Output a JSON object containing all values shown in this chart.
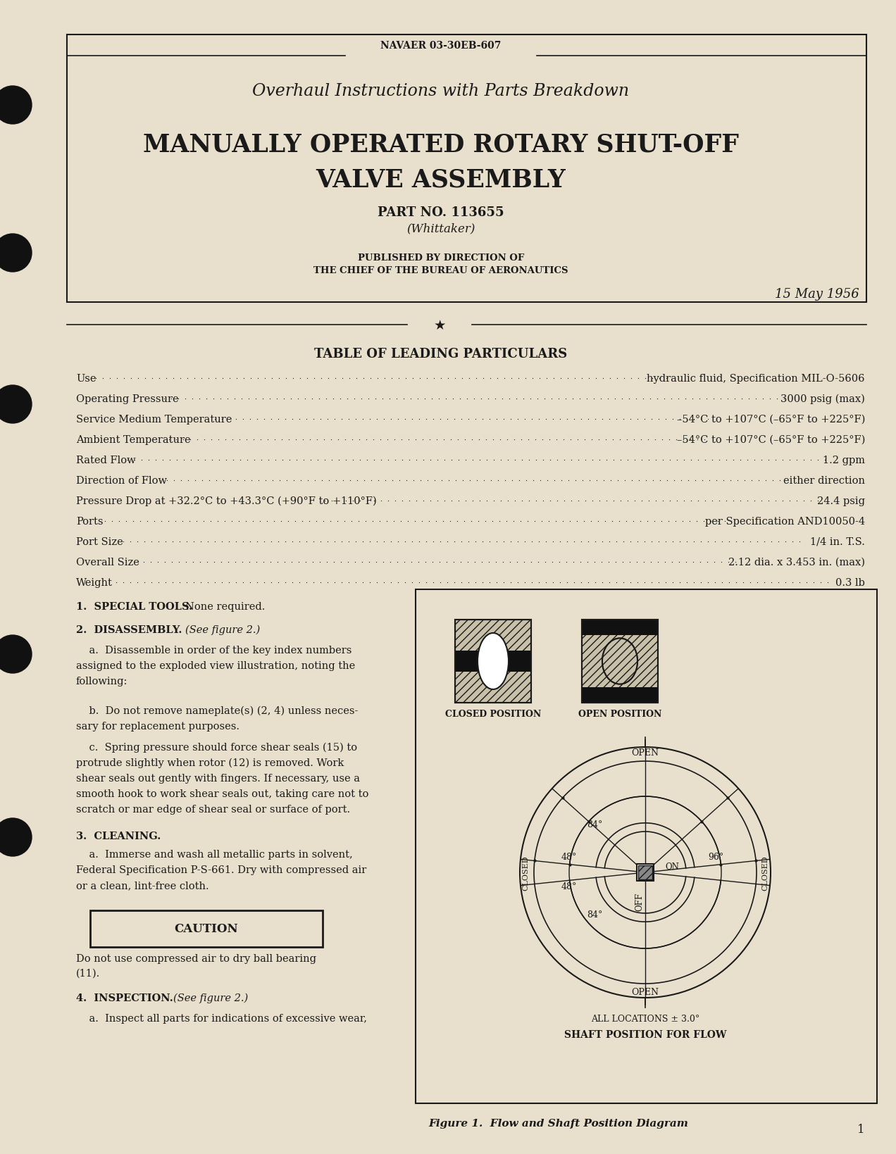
{
  "bg_color": "#e8e0cc",
  "text_color": "#1a1a1a",
  "header_doc_num": "NAVAER 03-30EB-607",
  "title_italic": "Overhaul Instructions with Parts Breakdown",
  "title_main_line1": "MANUALLY OPERATED ROTARY SHUT-OFF",
  "title_main_line2": "VALVE ASSEMBLY",
  "part_no": "PART NO. 113655",
  "manufacturer": "(Whittaker)",
  "published_line1": "PUBLISHED BY DIRECTION OF",
  "published_line2": "THE CHIEF OF THE BUREAU OF AERONAUTICS",
  "date": "15 May 1956",
  "table_title": "TABLE OF LEADING PARTICULARS",
  "table_rows": [
    [
      "Use",
      "hydraulic fluid, Specification MIL-O-5606"
    ],
    [
      "Operating Pressure",
      "3000 psig (max)"
    ],
    [
      "Service Medium Temperature",
      "–54°C to +107°C (–65°F to +225°F)"
    ],
    [
      "Ambient Temperature",
      "–54°C to +107°C (–65°F to +225°F)"
    ],
    [
      "Rated Flow",
      "1.2 gpm"
    ],
    [
      "Direction of Flow",
      "either direction"
    ],
    [
      "Pressure Drop at +32.2°C to +43.3°C (+90°F to +110°F)",
      "24.4 psig"
    ],
    [
      "Ports",
      "per Specification AND10050-4"
    ],
    [
      "Port Size",
      "1/4 in. T.S."
    ],
    [
      "Overall Size",
      "2.12 dia. x 3.453 in. (max)"
    ],
    [
      "Weight",
      "0.3 lb"
    ]
  ],
  "section1_bold": "1.  SPECIAL TOOLS.",
  "section1_rest": "  None required.",
  "section2_bold": "2.  DISASSEMBLY.",
  "section2_italic": "  (See figure 2.)",
  "section3_bold": "3.  CLEANING.",
  "section4_bold": "4.  INSPECTION.",
  "section4_italic": "  (See figure 2.)",
  "figure_caption": "Figure 1.  Flow and Shaft Position Diagram",
  "page_number": "1",
  "all_locations_text": "ALL LOCATIONS ± 3.0°",
  "shaft_pos_text": "SHAFT POSITION FOR FLOW",
  "closed_label": "CLOSED POSITION",
  "open_label": "OPEN POSITION"
}
